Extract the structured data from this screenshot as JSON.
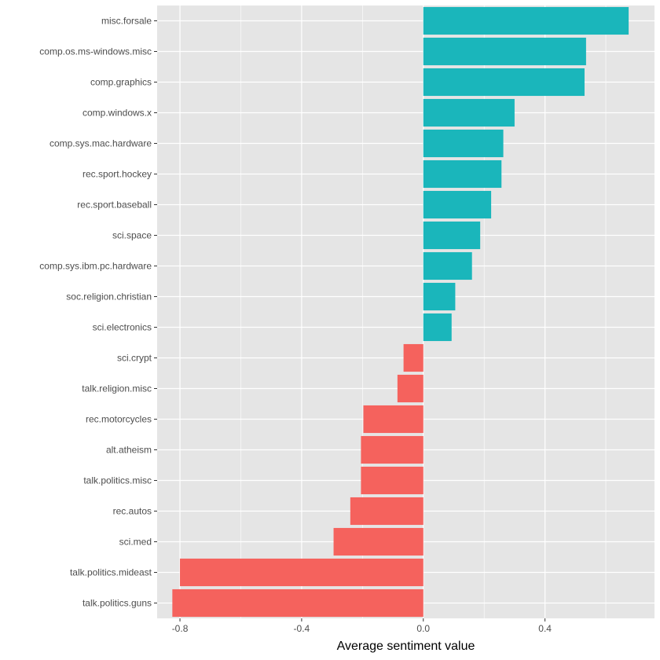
{
  "chart_data": {
    "type": "bar",
    "orientation": "horizontal",
    "xlabel": "Average sentiment value",
    "ylabel": "",
    "xlim": [
      -0.875,
      0.76
    ],
    "xticks": [
      -0.8,
      -0.4,
      0.0,
      0.4
    ],
    "xtick_labels": [
      "-0.8",
      "-0.4",
      "0.0",
      "0.4"
    ],
    "grid": true,
    "legend": "none",
    "colors": {
      "positive": "#1AB6BB",
      "negative": "#F5625D",
      "panel": "#E5E5E5",
      "grid": "#FFFFFF"
    },
    "categories": [
      "misc.forsale",
      "comp.os.ms-windows.misc",
      "comp.graphics",
      "comp.windows.x",
      "comp.sys.mac.hardware",
      "rec.sport.hockey",
      "rec.sport.baseball",
      "sci.space",
      "comp.sys.ibm.pc.hardware",
      "soc.religion.christian",
      "sci.electronics",
      "sci.crypt",
      "talk.religion.misc",
      "rec.motorcycles",
      "alt.atheism",
      "talk.politics.misc",
      "rec.autos",
      "sci.med",
      "talk.politics.mideast",
      "talk.politics.guns"
    ],
    "values": [
      0.675,
      0.535,
      0.53,
      0.3,
      0.263,
      0.257,
      0.223,
      0.187,
      0.16,
      0.105,
      0.093,
      -0.065,
      -0.085,
      -0.197,
      -0.205,
      -0.205,
      -0.24,
      -0.295,
      -0.8,
      -0.825
    ]
  }
}
